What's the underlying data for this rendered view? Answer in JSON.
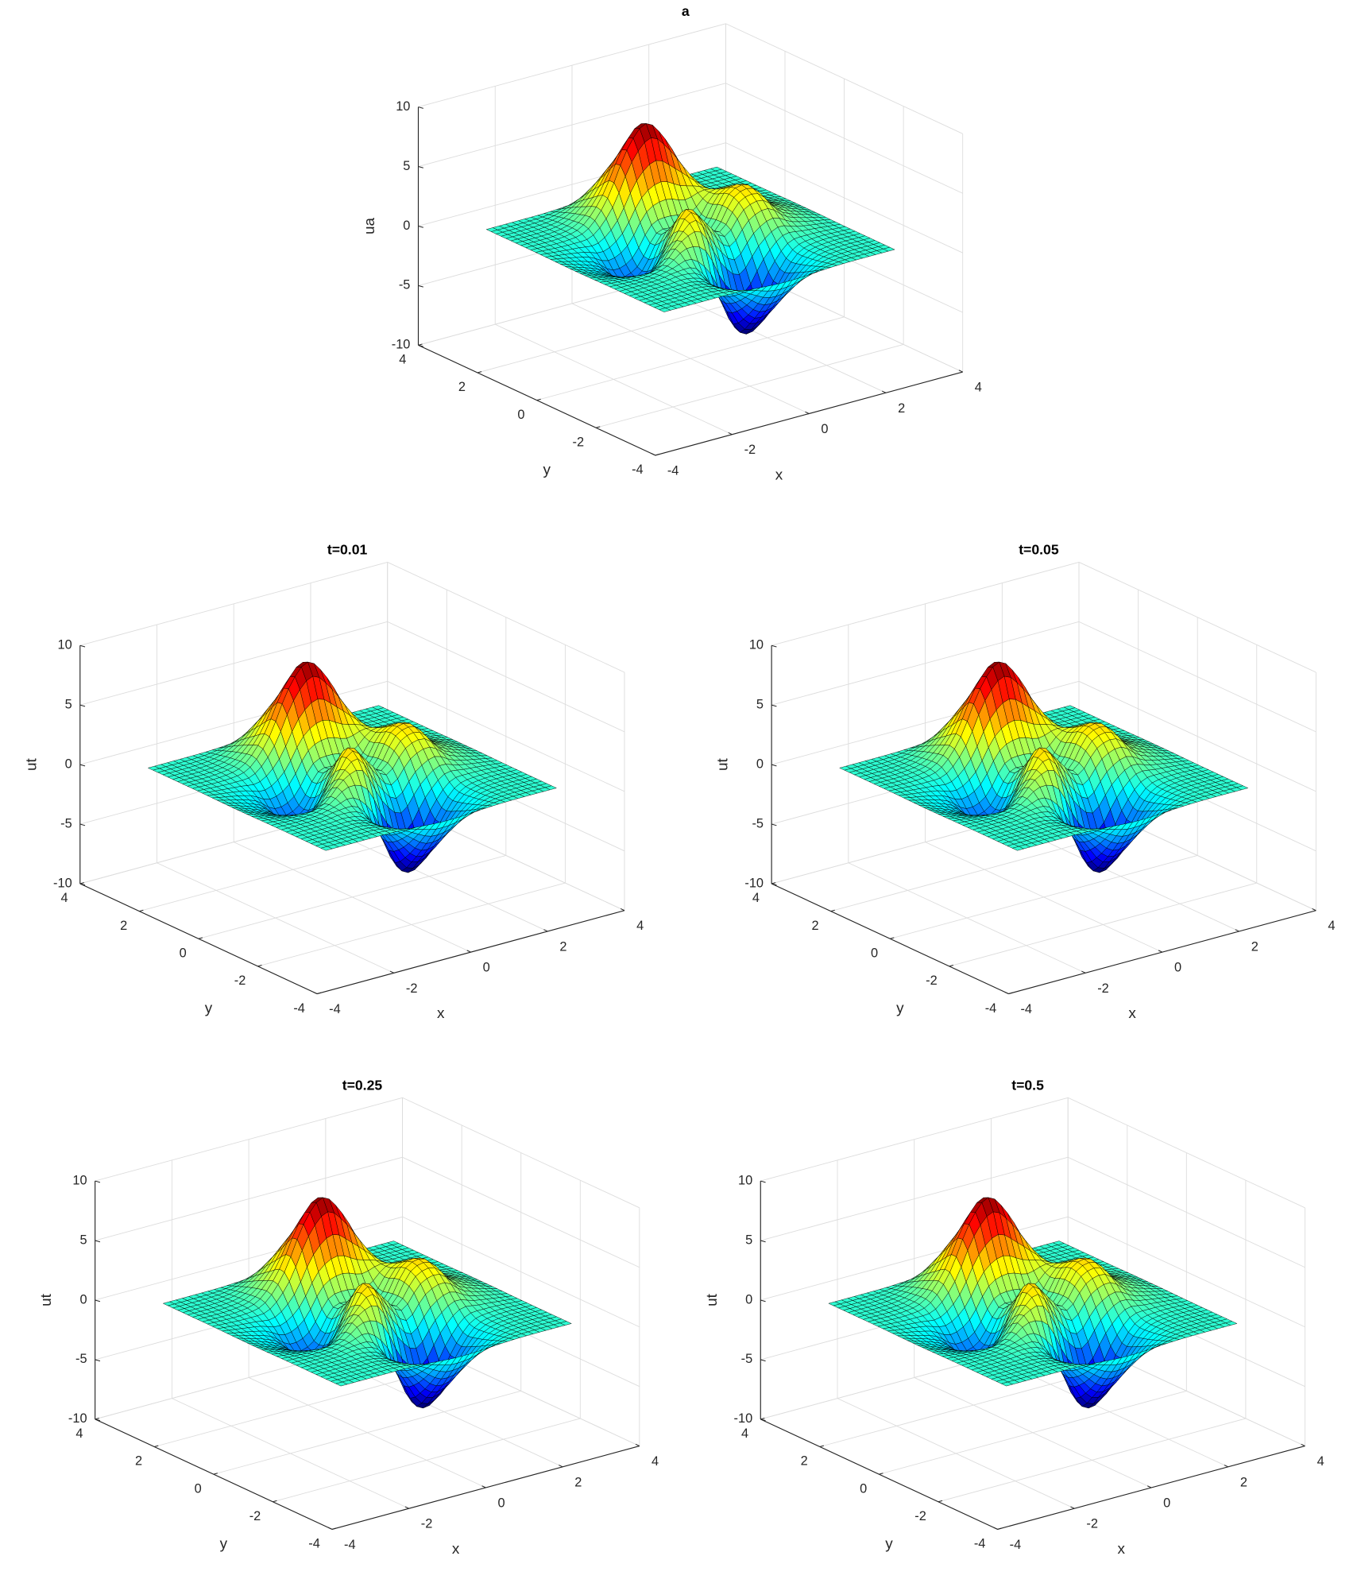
{
  "chart_data": [
    {
      "type": "surface",
      "title": "a",
      "xlabel": "x",
      "ylabel": "y",
      "zlabel": "ua",
      "x": [
        -3,
        -2,
        -1.5,
        -1,
        -0.5,
        0,
        0.5,
        1,
        1.5,
        2,
        3
      ],
      "y": [
        -3,
        -2,
        -1.5,
        -1,
        -0.5,
        0,
        0.5,
        1,
        1.5,
        2,
        3
      ],
      "z": [
        [
          0,
          0,
          0,
          -0.03,
          -0.14,
          -0.24,
          -0.22,
          -0.11,
          -0.03,
          0,
          0
        ],
        [
          0,
          0.05,
          0.05,
          -0.59,
          -2.63,
          -4.75,
          -4.34,
          -2.1,
          -0.53,
          -0.06,
          0
        ],
        [
          0,
          0.08,
          0.33,
          0.15,
          -2.19,
          -5.68,
          -5.76,
          -2.63,
          -0.44,
          0.04,
          0
        ],
        [
          -0.01,
          -0.13,
          0.3,
          1.86,
          2.22,
          -0.72,
          -2.22,
          -0.27,
          0.88,
          0.5,
          0.01
        ],
        [
          -0.03,
          -0.8,
          -1.21,
          0.8,
          3.55,
          2,
          0.39,
          2.2,
          2.56,
          1.12,
          0.03
        ],
        [
          -0.04,
          -1.33,
          -2.77,
          -1.65,
          1.48,
          0.98,
          0.37,
          2.94,
          3.27,
          1.41,
          0.03
        ],
        [
          -0.03,
          -1.12,
          -2.49,
          -2,
          0.39,
          0.46,
          0.38,
          2.38,
          2.56,
          1.09,
          0.03
        ],
        [
          -0.01,
          -0.48,
          -0.86,
          0.23,
          2.79,
          3.69,
          2.94,
          2.43,
          1.58,
          0.58,
          0.01
        ],
        [
          0,
          -0.01,
          0.48,
          2.61,
          6.2,
          8,
          6.25,
          3.26,
          1.19,
          0.29,
          0
        ],
        [
          0,
          0.08,
          0.55,
          2.09,
          4.55,
          5.85,
          4.56,
          2.21,
          0.68,
          0.13,
          0
        ],
        [
          0,
          0.01,
          0.03,
          0.11,
          0.23,
          0.3,
          0.23,
          0.11,
          0.03,
          0.01,
          0
        ]
      ],
      "xlim": [
        -4,
        4
      ],
      "ylim": [
        -4,
        4
      ],
      "zlim": [
        -10,
        10
      ],
      "xticks": [
        -4,
        -2,
        0,
        2,
        4
      ],
      "yticks": [
        -4,
        -2,
        0,
        2,
        4
      ],
      "zticks": [
        -10,
        -5,
        0,
        5,
        10
      ],
      "grid": true,
      "colormap": "jet",
      "edgecolor": "#000000"
    },
    {
      "type": "surface",
      "title": "t=0.01",
      "xlabel": "x",
      "ylabel": "y",
      "zlabel": "ut",
      "x": [
        -3,
        -2,
        -1.5,
        -1,
        -0.5,
        0,
        0.5,
        1,
        1.5,
        2,
        3
      ],
      "y": [
        -3,
        -2,
        -1.5,
        -1,
        -0.5,
        0,
        0.5,
        1,
        1.5,
        2,
        3
      ],
      "z": [
        [
          0,
          0,
          0,
          -0.03,
          -0.14,
          -0.24,
          -0.22,
          -0.11,
          -0.03,
          0,
          0
        ],
        [
          0,
          0.05,
          0.05,
          -0.59,
          -2.63,
          -4.75,
          -4.34,
          -2.1,
          -0.53,
          -0.06,
          0
        ],
        [
          0,
          0.08,
          0.33,
          0.15,
          -2.19,
          -5.68,
          -5.76,
          -2.63,
          -0.44,
          0.04,
          0
        ],
        [
          -0.01,
          -0.13,
          0.3,
          1.86,
          2.22,
          -0.72,
          -2.22,
          -0.27,
          0.88,
          0.5,
          0.01
        ],
        [
          -0.03,
          -0.8,
          -1.21,
          0.8,
          3.55,
          2,
          0.39,
          2.2,
          2.56,
          1.12,
          0.03
        ],
        [
          -0.04,
          -1.33,
          -2.77,
          -1.65,
          1.48,
          0.98,
          0.37,
          2.94,
          3.27,
          1.41,
          0.03
        ],
        [
          -0.03,
          -1.12,
          -2.49,
          -2,
          0.39,
          0.46,
          0.38,
          2.38,
          2.56,
          1.09,
          0.03
        ],
        [
          -0.01,
          -0.48,
          -0.86,
          0.23,
          2.79,
          3.69,
          2.94,
          2.43,
          1.58,
          0.58,
          0.01
        ],
        [
          0,
          -0.01,
          0.48,
          2.61,
          6.2,
          8,
          6.25,
          3.26,
          1.19,
          0.29,
          0
        ],
        [
          0,
          0.08,
          0.55,
          2.09,
          4.55,
          5.85,
          4.56,
          2.21,
          0.68,
          0.13,
          0
        ],
        [
          0,
          0.01,
          0.03,
          0.11,
          0.23,
          0.3,
          0.23,
          0.11,
          0.03,
          0.01,
          0
        ]
      ],
      "xlim": [
        -4,
        4
      ],
      "ylim": [
        -4,
        4
      ],
      "zlim": [
        -10,
        10
      ],
      "xticks": [
        -4,
        -2,
        0,
        2,
        4
      ],
      "yticks": [
        -4,
        -2,
        0,
        2,
        4
      ],
      "zticks": [
        -10,
        -5,
        0,
        5,
        10
      ],
      "grid": true,
      "colormap": "jet",
      "edgecolor": "#000000"
    },
    {
      "type": "surface",
      "title": "t=0.05",
      "xlabel": "x",
      "ylabel": "y",
      "zlabel": "ut",
      "x": [
        -3,
        -2,
        -1.5,
        -1,
        -0.5,
        0,
        0.5,
        1,
        1.5,
        2,
        3
      ],
      "y": [
        -3,
        -2,
        -1.5,
        -1,
        -0.5,
        0,
        0.5,
        1,
        1.5,
        2,
        3
      ],
      "z": [
        [
          0,
          0,
          0,
          -0.03,
          -0.14,
          -0.24,
          -0.22,
          -0.11,
          -0.03,
          0,
          0
        ],
        [
          0,
          0.05,
          0.05,
          -0.59,
          -2.63,
          -4.75,
          -4.34,
          -2.1,
          -0.53,
          -0.06,
          0
        ],
        [
          0,
          0.08,
          0.33,
          0.15,
          -2.19,
          -5.68,
          -5.76,
          -2.63,
          -0.44,
          0.04,
          0
        ],
        [
          -0.01,
          -0.13,
          0.3,
          1.86,
          2.22,
          -0.72,
          -2.22,
          -0.27,
          0.88,
          0.5,
          0.01
        ],
        [
          -0.03,
          -0.8,
          -1.21,
          0.8,
          3.55,
          2,
          0.39,
          2.2,
          2.56,
          1.12,
          0.03
        ],
        [
          -0.04,
          -1.33,
          -2.77,
          -1.65,
          1.48,
          0.98,
          0.37,
          2.94,
          3.27,
          1.41,
          0.03
        ],
        [
          -0.03,
          -1.12,
          -2.49,
          -2,
          0.39,
          0.46,
          0.38,
          2.38,
          2.56,
          1.09,
          0.03
        ],
        [
          -0.01,
          -0.48,
          -0.86,
          0.23,
          2.79,
          3.69,
          2.94,
          2.43,
          1.58,
          0.58,
          0.01
        ],
        [
          0,
          -0.01,
          0.48,
          2.61,
          6.2,
          8,
          6.25,
          3.26,
          1.19,
          0.29,
          0
        ],
        [
          0,
          0.08,
          0.55,
          2.09,
          4.55,
          5.85,
          4.56,
          2.21,
          0.68,
          0.13,
          0
        ],
        [
          0,
          0.01,
          0.03,
          0.11,
          0.23,
          0.3,
          0.23,
          0.11,
          0.03,
          0.01,
          0
        ]
      ],
      "xlim": [
        -4,
        4
      ],
      "ylim": [
        -4,
        4
      ],
      "zlim": [
        -10,
        10
      ],
      "xticks": [
        -4,
        -2,
        0,
        2,
        4
      ],
      "yticks": [
        -4,
        -2,
        0,
        2,
        4
      ],
      "zticks": [
        -10,
        -5,
        0,
        5,
        10
      ],
      "grid": true,
      "colormap": "jet",
      "edgecolor": "#000000"
    },
    {
      "type": "surface",
      "title": "t=0.25",
      "xlabel": "x",
      "ylabel": "y",
      "zlabel": "ut",
      "x": [
        -3,
        -2,
        -1.5,
        -1,
        -0.5,
        0,
        0.5,
        1,
        1.5,
        2,
        3
      ],
      "y": [
        -3,
        -2,
        -1.5,
        -1,
        -0.5,
        0,
        0.5,
        1,
        1.5,
        2,
        3
      ],
      "z": [
        [
          0,
          0,
          0,
          -0.03,
          -0.14,
          -0.24,
          -0.22,
          -0.11,
          -0.03,
          0,
          0
        ],
        [
          0,
          0.05,
          0.05,
          -0.59,
          -2.63,
          -4.75,
          -4.34,
          -2.1,
          -0.53,
          -0.06,
          0
        ],
        [
          0,
          0.08,
          0.33,
          0.15,
          -2.19,
          -5.68,
          -5.76,
          -2.63,
          -0.44,
          0.04,
          0
        ],
        [
          -0.01,
          -0.13,
          0.3,
          1.86,
          2.22,
          -0.72,
          -2.22,
          -0.27,
          0.88,
          0.5,
          0.01
        ],
        [
          -0.03,
          -0.8,
          -1.21,
          0.8,
          3.55,
          2,
          0.39,
          2.2,
          2.56,
          1.12,
          0.03
        ],
        [
          -0.04,
          -1.33,
          -2.77,
          -1.65,
          1.48,
          0.98,
          0.37,
          2.94,
          3.27,
          1.41,
          0.03
        ],
        [
          -0.03,
          -1.12,
          -2.49,
          -2,
          0.39,
          0.46,
          0.38,
          2.38,
          2.56,
          1.09,
          0.03
        ],
        [
          -0.01,
          -0.48,
          -0.86,
          0.23,
          2.79,
          3.69,
          2.94,
          2.43,
          1.58,
          0.58,
          0.01
        ],
        [
          0,
          -0.01,
          0.48,
          2.61,
          6.2,
          8,
          6.25,
          3.26,
          1.19,
          0.29,
          0
        ],
        [
          0,
          0.08,
          0.55,
          2.09,
          4.55,
          5.85,
          4.56,
          2.21,
          0.68,
          0.13,
          0
        ],
        [
          0,
          0.01,
          0.03,
          0.11,
          0.23,
          0.3,
          0.23,
          0.11,
          0.03,
          0.01,
          0
        ]
      ],
      "xlim": [
        -4,
        4
      ],
      "ylim": [
        -4,
        4
      ],
      "zlim": [
        -10,
        10
      ],
      "xticks": [
        -4,
        -2,
        0,
        2,
        4
      ],
      "yticks": [
        -4,
        -2,
        0,
        2,
        4
      ],
      "zticks": [
        -10,
        -5,
        0,
        5,
        10
      ],
      "grid": true,
      "colormap": "jet",
      "edgecolor": "#000000"
    },
    {
      "type": "surface",
      "title": "t=0.5",
      "xlabel": "x",
      "ylabel": "y",
      "zlabel": "ut",
      "x": [
        -3,
        -2,
        -1.5,
        -1,
        -0.5,
        0,
        0.5,
        1,
        1.5,
        2,
        3
      ],
      "y": [
        -3,
        -2,
        -1.5,
        -1,
        -0.5,
        0,
        0.5,
        1,
        1.5,
        2,
        3
      ],
      "z": [
        [
          0,
          0,
          0,
          -0.03,
          -0.14,
          -0.24,
          -0.22,
          -0.11,
          -0.03,
          0,
          0
        ],
        [
          0,
          0.05,
          0.05,
          -0.59,
          -2.63,
          -4.75,
          -4.34,
          -2.1,
          -0.53,
          -0.06,
          0
        ],
        [
          0,
          0.08,
          0.33,
          0.15,
          -2.19,
          -5.68,
          -5.76,
          -2.63,
          -0.44,
          0.04,
          0
        ],
        [
          -0.01,
          -0.13,
          0.3,
          1.86,
          2.22,
          -0.72,
          -2.22,
          -0.27,
          0.88,
          0.5,
          0.01
        ],
        [
          -0.03,
          -0.8,
          -1.21,
          0.8,
          3.55,
          2,
          0.39,
          2.2,
          2.56,
          1.12,
          0.03
        ],
        [
          -0.04,
          -1.33,
          -2.77,
          -1.65,
          1.48,
          0.98,
          0.37,
          2.94,
          3.27,
          1.41,
          0.03
        ],
        [
          -0.03,
          -1.12,
          -2.49,
          -2,
          0.39,
          0.46,
          0.38,
          2.38,
          2.56,
          1.09,
          0.03
        ],
        [
          -0.01,
          -0.48,
          -0.86,
          0.23,
          2.79,
          3.69,
          2.94,
          2.43,
          1.58,
          0.58,
          0.01
        ],
        [
          0,
          -0.01,
          0.48,
          2.61,
          6.2,
          8,
          6.25,
          3.26,
          1.19,
          0.29,
          0
        ],
        [
          0,
          0.08,
          0.55,
          2.09,
          4.55,
          5.85,
          4.56,
          2.21,
          0.68,
          0.13,
          0
        ],
        [
          0,
          0.01,
          0.03,
          0.11,
          0.23,
          0.3,
          0.23,
          0.11,
          0.03,
          0.01,
          0
        ]
      ],
      "xlim": [
        -4,
        4
      ],
      "ylim": [
        -4,
        4
      ],
      "zlim": [
        -10,
        10
      ],
      "xticks": [
        -4,
        -2,
        0,
        2,
        4
      ],
      "yticks": [
        -4,
        -2,
        0,
        2,
        4
      ],
      "zticks": [
        -10,
        -5,
        0,
        5,
        10
      ],
      "grid": true,
      "colormap": "jet",
      "edgecolor": "#000000"
    }
  ]
}
